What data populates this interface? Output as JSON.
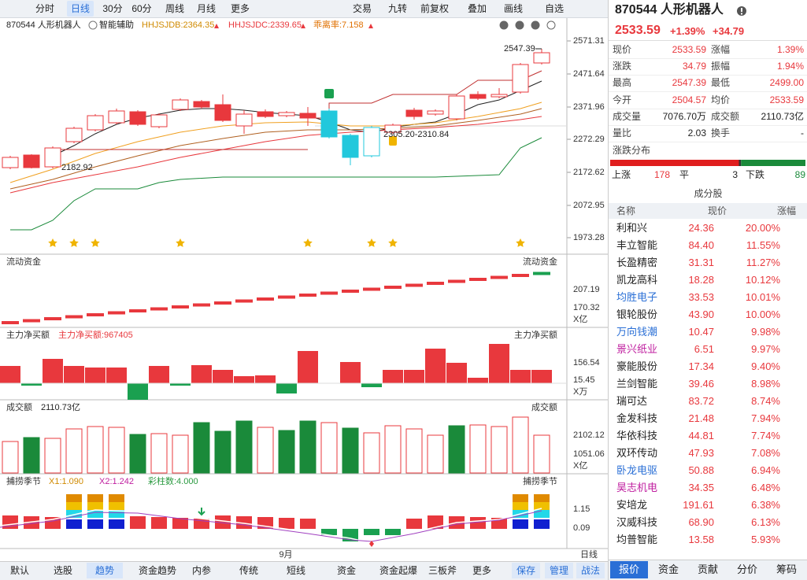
{
  "toolbar": {
    "periods": [
      "分时",
      "日线",
      "30分",
      "60分",
      "周线",
      "月线",
      "更多"
    ],
    "active": 1,
    "tools": [
      "交易",
      "九转",
      "前复权",
      "叠加",
      "画线",
      "自选"
    ]
  },
  "chart": {
    "code_name": "870544 人形机器人",
    "assist": "智能辅助",
    "indicators": [
      "HHJSJDB:2364.35",
      "HHJSJDC:2339.65",
      "乖离率:7.158"
    ],
    "price_ticks": [
      2571.31,
      2471.64,
      2371.96,
      2272.29,
      2172.62,
      2072.95,
      1973.28
    ],
    "annotations": [
      "2547.39",
      "2182.92",
      "2305.20-2310.84"
    ],
    "x_label": "9月",
    "period": "日线"
  },
  "panels": [
    {
      "title": "流动资金",
      "legend": [],
      "ticks": [
        207.19,
        170.32
      ],
      "unit": "X亿"
    },
    {
      "title": "主力净买额",
      "legend": [
        "主力净买额:967405"
      ],
      "ticks": [
        156.54,
        15.45
      ],
      "unit": "X万"
    },
    {
      "title": "成交额",
      "legend": [
        "2110.73亿"
      ],
      "ticks": [
        2102.12,
        1051.06
      ],
      "unit": "X亿"
    },
    {
      "title": "捕捞季节",
      "legend": [
        "X1:1.090",
        "X2:1.242",
        "彩柱数:4.000"
      ],
      "ticks": [
        1.15,
        0.09
      ]
    }
  ],
  "bottom_tabs": {
    "items": [
      "默认",
      "选股",
      "趋势",
      "资金趋势",
      "内参",
      "传统",
      "短线",
      "资金",
      "资金起爆",
      "三板斧",
      "更多"
    ],
    "active": 2,
    "actions": [
      "保存",
      "管理",
      "战法"
    ]
  },
  "quote": {
    "price": "2533.59",
    "change_pct": "+1.39%",
    "change": "+34.79",
    "rows": [
      [
        "现价",
        "2533.59",
        "涨幅",
        "1.39%"
      ],
      [
        "涨跌",
        "34.79",
        "振幅",
        "1.94%"
      ],
      [
        "最高",
        "2547.39",
        "最低",
        "2499.00"
      ],
      [
        "今开",
        "2504.57",
        "均价",
        "2533.59"
      ],
      [
        "成交量",
        "7076.70万",
        "成交额",
        "2110.73亿"
      ],
      [
        "量比",
        "2.03",
        "换手",
        "-"
      ]
    ]
  },
  "distribution": {
    "title": "涨跌分布",
    "up_label": "上涨",
    "up": 178,
    "flat_label": "平",
    "flat": 3,
    "down_label": "下跌",
    "down": 89
  },
  "constituents": {
    "title": "成分股",
    "headers": [
      "名称",
      "现价",
      "涨幅"
    ],
    "rows": [
      {
        "name": "利和兴",
        "price": "24.36",
        "change": "20.00%"
      },
      {
        "name": "丰立智能",
        "price": "84.40",
        "change": "11.55%"
      },
      {
        "name": "长盈精密",
        "price": "31.31",
        "change": "11.27%"
      },
      {
        "name": "凯龙高科",
        "price": "18.28",
        "change": "10.12%"
      },
      {
        "name": "均胜电子",
        "price": "33.53",
        "change": "10.01%",
        "color": "#2a6fd6"
      },
      {
        "name": "银轮股份",
        "price": "43.90",
        "change": "10.00%"
      },
      {
        "name": "万向钱潮",
        "price": "10.47",
        "change": "9.98%",
        "color": "#2a6fd6"
      },
      {
        "name": "景兴纸业",
        "price": "6.51",
        "change": "9.97%",
        "color": "#c020a0"
      },
      {
        "name": "豪能股份",
        "price": "17.34",
        "change": "9.40%"
      },
      {
        "name": "兰剑智能",
        "price": "39.46",
        "change": "8.98%"
      },
      {
        "name": "瑞可达",
        "price": "83.72",
        "change": "8.74%"
      },
      {
        "name": "金发科技",
        "price": "21.48",
        "change": "7.94%"
      },
      {
        "name": "华依科技",
        "price": "44.81",
        "change": "7.74%"
      },
      {
        "name": "双环传动",
        "price": "47.93",
        "change": "7.08%"
      },
      {
        "name": "卧龙电驱",
        "price": "50.88",
        "change": "6.94%",
        "color": "#2a6fd6"
      },
      {
        "name": "昊志机电",
        "price": "34.35",
        "change": "6.48%",
        "color": "#c020a0"
      },
      {
        "name": "安培龙",
        "price": "191.61",
        "change": "6.38%"
      },
      {
        "name": "汉威科技",
        "price": "68.90",
        "change": "6.13%"
      },
      {
        "name": "均普智能",
        "price": "13.58",
        "change": "5.93%"
      }
    ]
  },
  "right_tabs": {
    "items": [
      "报价",
      "资金",
      "贡献",
      "分价",
      "筹码"
    ],
    "active": 0
  }
}
